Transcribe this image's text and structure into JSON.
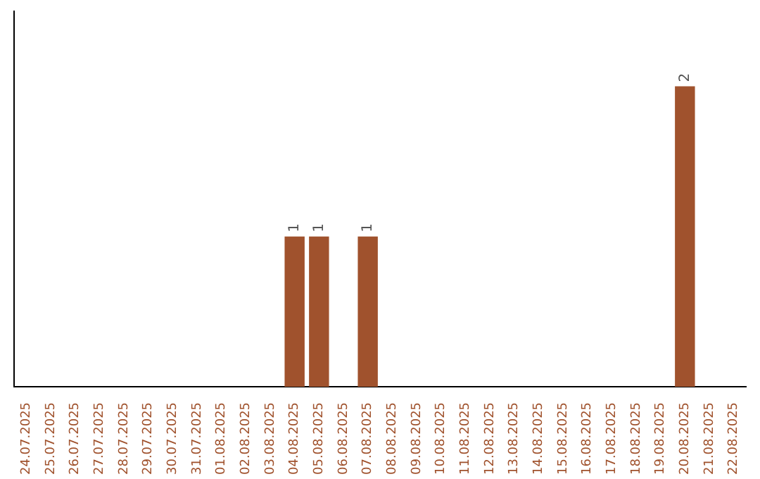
{
  "chart_data": {
    "type": "bar",
    "categories": [
      "24.07.2025",
      "25.07.2025",
      "26.07.2025",
      "27.07.2025",
      "28.07.2025",
      "29.07.2025",
      "30.07.2025",
      "31.07.2025",
      "01.08.2025",
      "02.08.2025",
      "03.08.2025",
      "04.08.2025",
      "05.08.2025",
      "06.08.2025",
      "07.08.2025",
      "08.08.2025",
      "09.08.2025",
      "10.08.2025",
      "11.08.2025",
      "12.08.2025",
      "13.08.2025",
      "14.08.2025",
      "15.08.2025",
      "16.08.2025",
      "17.08.2025",
      "18.08.2025",
      "19.08.2025",
      "20.08.2025",
      "21.08.2025",
      "22.08.2025"
    ],
    "values": [
      0,
      0,
      0,
      0,
      0,
      0,
      0,
      0,
      0,
      0,
      0,
      1,
      1,
      0,
      1,
      0,
      0,
      0,
      0,
      0,
      0,
      0,
      0,
      0,
      0,
      0,
      0,
      2,
      0,
      0
    ],
    "color": "#a0522d",
    "value_labels": [
      null,
      null,
      null,
      null,
      null,
      null,
      null,
      null,
      null,
      null,
      null,
      "1",
      "1",
      null,
      "1",
      null,
      null,
      null,
      null,
      null,
      null,
      null,
      null,
      null,
      null,
      null,
      null,
      "2",
      null,
      null
    ]
  }
}
